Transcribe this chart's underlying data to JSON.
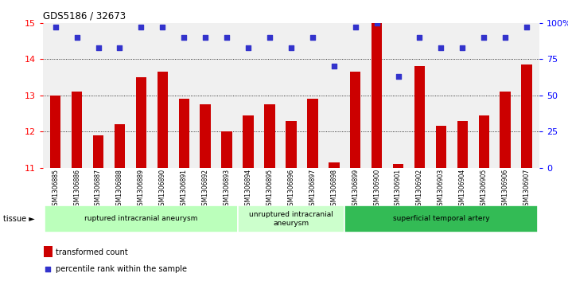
{
  "title": "GDS5186 / 32673",
  "samples": [
    "GSM1306885",
    "GSM1306886",
    "GSM1306887",
    "GSM1306888",
    "GSM1306889",
    "GSM1306890",
    "GSM1306891",
    "GSM1306892",
    "GSM1306893",
    "GSM1306894",
    "GSM1306895",
    "GSM1306896",
    "GSM1306897",
    "GSM1306898",
    "GSM1306899",
    "GSM1306900",
    "GSM1306901",
    "GSM1306902",
    "GSM1306903",
    "GSM1306904",
    "GSM1306905",
    "GSM1306906",
    "GSM1306907"
  ],
  "bar_values": [
    13.0,
    13.1,
    11.9,
    12.2,
    13.5,
    13.65,
    12.9,
    12.75,
    12.0,
    12.45,
    12.75,
    12.3,
    12.9,
    11.15,
    13.65,
    15.0,
    11.1,
    13.8,
    12.15,
    12.3,
    12.45,
    13.1,
    13.85
  ],
  "dot_values": [
    97,
    90,
    83,
    83,
    97,
    97,
    90,
    90,
    90,
    83,
    90,
    83,
    90,
    70,
    97,
    100,
    63,
    90,
    83,
    83,
    90,
    90,
    97
  ],
  "ylim_left": [
    11,
    15
  ],
  "ylim_right": [
    0,
    100
  ],
  "yticks_left": [
    11,
    12,
    13,
    14,
    15
  ],
  "yticks_right": [
    0,
    25,
    50,
    75,
    100
  ],
  "ytick_labels_right": [
    "0",
    "25",
    "50",
    "75",
    "100%"
  ],
  "bar_color": "#cc0000",
  "dot_color": "#3333cc",
  "grid_color": "#000000",
  "bg_color": "#f0f0f0",
  "group_colors": [
    "#bbffbb",
    "#ccffcc",
    "#33bb55"
  ],
  "tissue_groups": [
    {
      "label": "ruptured intracranial aneurysm",
      "start": 0,
      "end": 9
    },
    {
      "label": "unruptured intracranial\naneurysm",
      "start": 9,
      "end": 14
    },
    {
      "label": "superficial temporal artery",
      "start": 14,
      "end": 23
    }
  ],
  "tissue_label": "tissue",
  "legend_bar_label": "transformed count",
  "legend_dot_label": "percentile rank within the sample"
}
